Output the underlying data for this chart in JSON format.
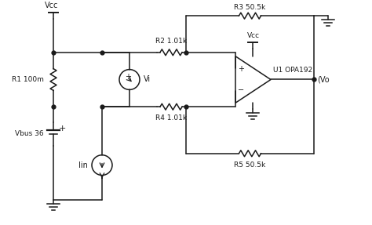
{
  "bg_color": "#ffffff",
  "line_color": "#1a1a1a",
  "fig_width": 4.74,
  "fig_height": 2.87,
  "dpi": 100,
  "labels": {
    "Vcc_top": "Vcc",
    "Vbus": "Vbus 36",
    "R1": "R1 100m",
    "R2": "R2 1.01k",
    "R3": "R3 50.5k",
    "R4": "R4 1.01k",
    "R5": "R5 50.5k",
    "Vi": "Vi",
    "Iin": "Iin",
    "Vo": "Vo",
    "U1": "U1 OPA192",
    "Vcc_op": "Vcc"
  }
}
